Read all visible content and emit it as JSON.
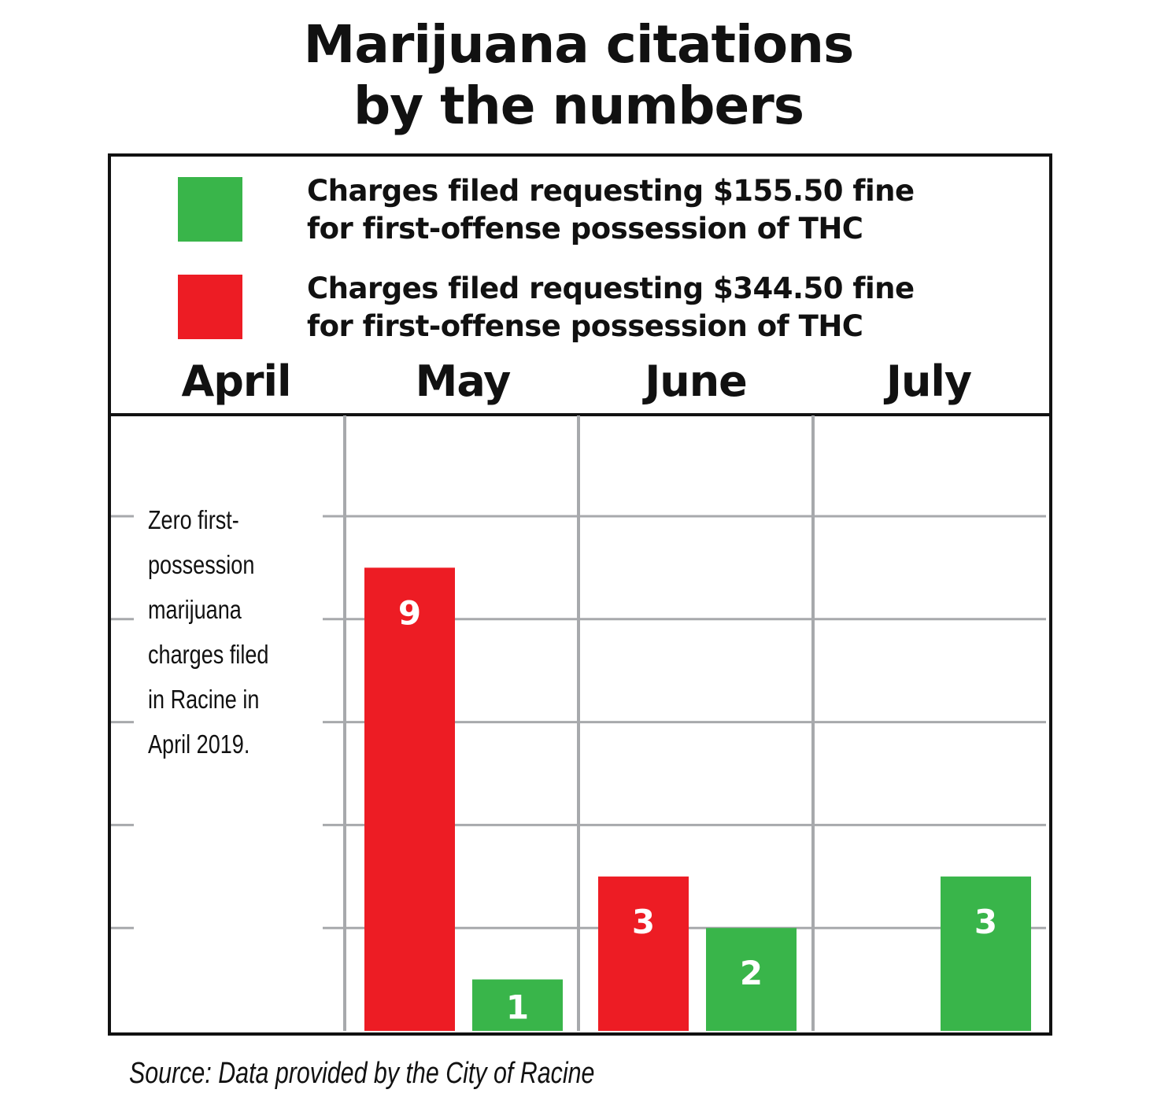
{
  "chart_data": {
    "type": "bar",
    "title": "Marijuana citations\nby the numbers",
    "categories": [
      "April",
      "May",
      "June",
      "July"
    ],
    "series": [
      {
        "name": "Charges filed requesting $344.50 fine\nfor first-offense possession of THC",
        "color": "#ed1c24",
        "values": [
          0,
          9,
          3,
          0
        ]
      },
      {
        "name": "Charges filed requesting $155.50 fine\nfor first-offense possession of THC",
        "color": "#39b54a",
        "values": [
          0,
          1,
          2,
          3
        ]
      }
    ],
    "annotation": "Zero first-possession marijuana charges filed in Racine in April 2019.",
    "source": "Source: Data provided by the City of Racine",
    "ylim": [
      0,
      12
    ],
    "grid": true,
    "legend_placement": "top"
  }
}
